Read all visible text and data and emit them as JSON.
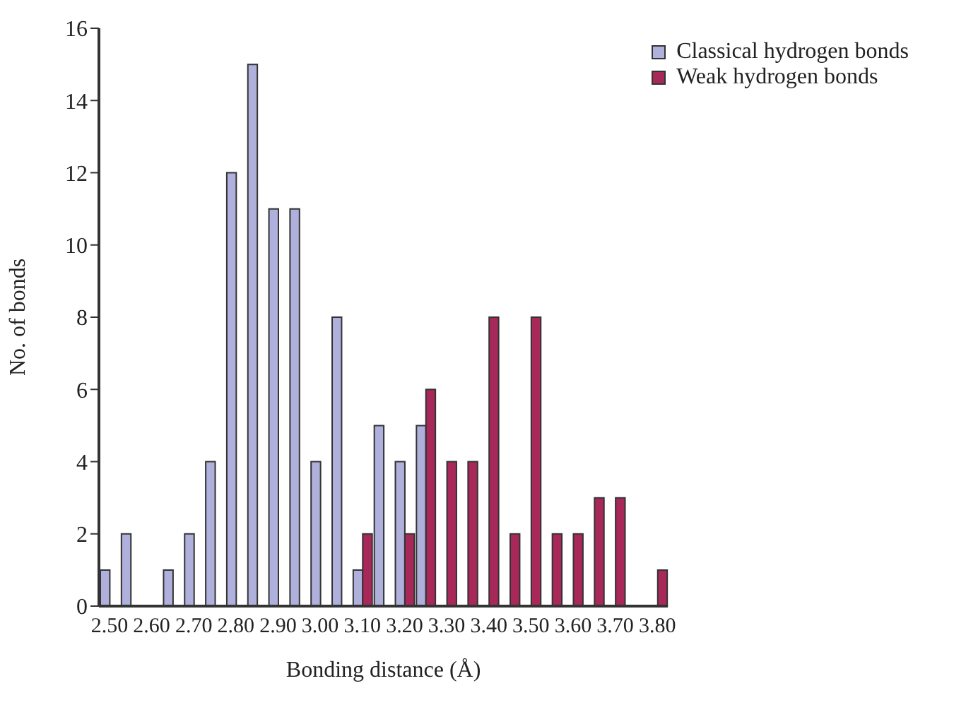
{
  "chart_data": {
    "type": "bar",
    "xlabel": "Bonding distance (Å)",
    "ylabel": "No. of bonds",
    "categories": [
      "2.50",
      null,
      "2.60",
      null,
      "2.70",
      null,
      "2.80",
      null,
      "2.90",
      null,
      "3.00",
      null,
      "3.10",
      null,
      "3.20",
      null,
      "3.30",
      null,
      "3.40",
      null,
      "3.50",
      null,
      "3.60",
      null,
      "3.70",
      null,
      "3.80"
    ],
    "series": [
      {
        "name": "Classical hydrogen bonds",
        "color": "#b0b0dc",
        "values": [
          1,
          2,
          0,
          1,
          2,
          4,
          12,
          15,
          11,
          11,
          4,
          8,
          1,
          5,
          4,
          5,
          0,
          0,
          0,
          0,
          0,
          0,
          0,
          0,
          0,
          0,
          0
        ]
      },
      {
        "name": "Weak hydrogen bonds",
        "color": "#a8285a",
        "values": [
          0,
          0,
          0,
          0,
          0,
          0,
          0,
          0,
          0,
          0,
          0,
          0,
          2,
          0,
          2,
          6,
          4,
          4,
          8,
          2,
          8,
          2,
          2,
          3,
          3,
          0,
          1
        ]
      }
    ],
    "ylim": [
      0,
      16
    ],
    "yticks": [
      0,
      2,
      4,
      6,
      8,
      10,
      12,
      14,
      16
    ],
    "grid": false,
    "legend": "top right"
  }
}
